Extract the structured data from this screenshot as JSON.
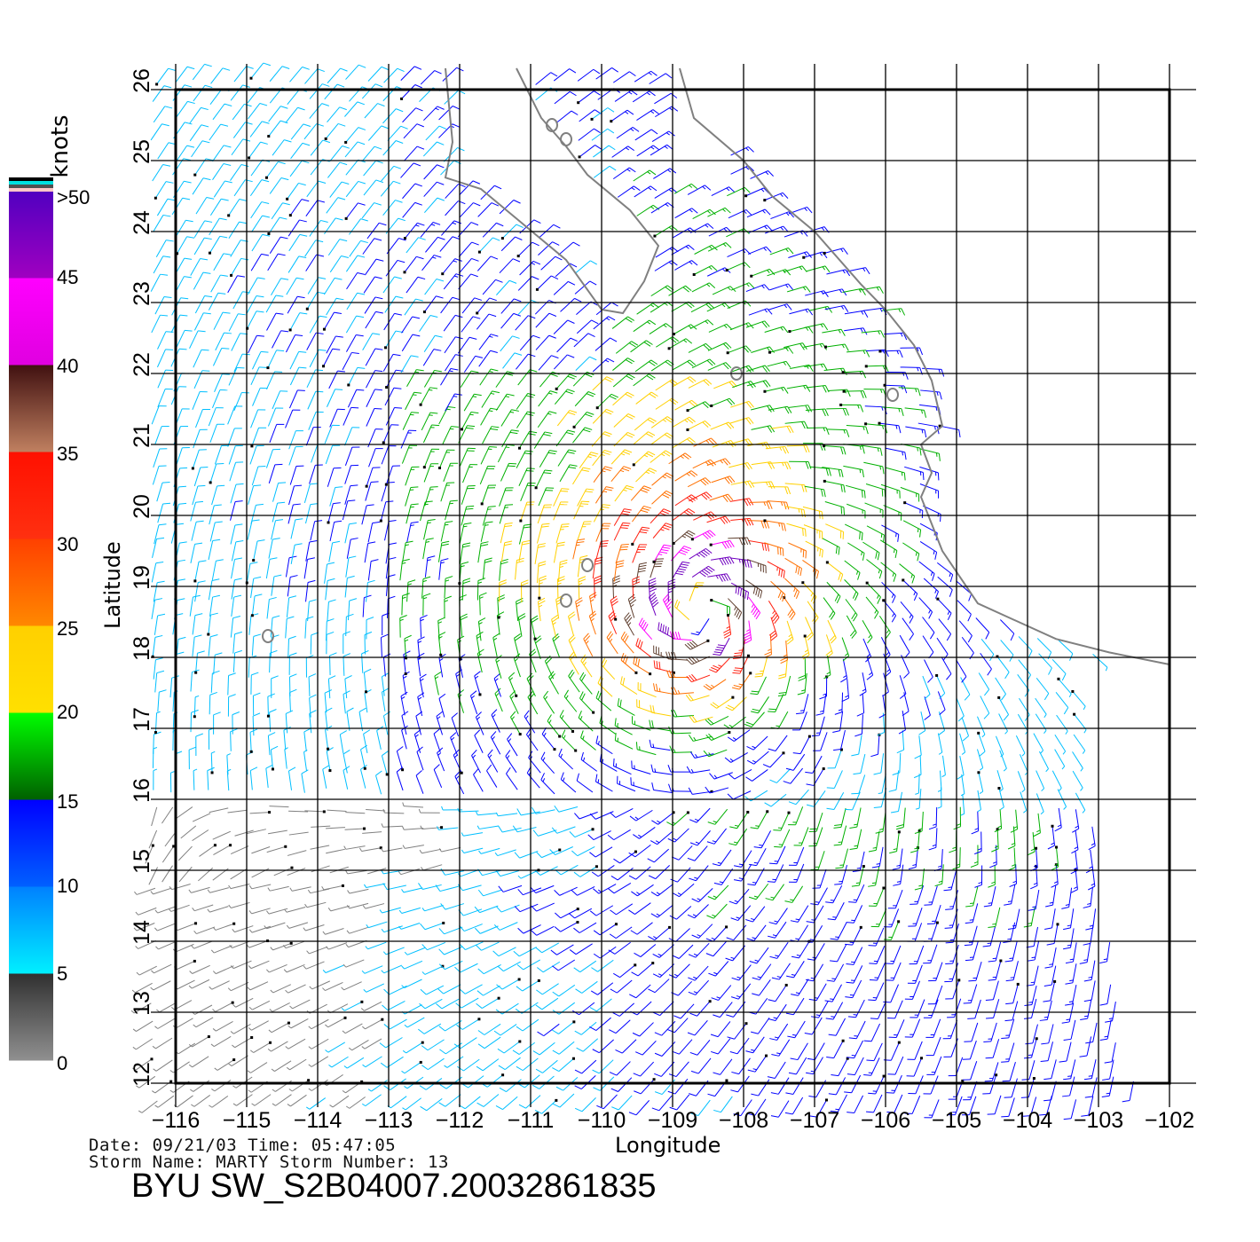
{
  "map": {
    "x_axis_label": "Longitude",
    "y_axis_label": "Latitude",
    "lon_ticks": [
      -116,
      -115,
      -114,
      -113,
      -112,
      -111,
      -110,
      -109,
      -108,
      -107,
      -106,
      -105,
      -104,
      -103,
      -102
    ],
    "lon_tick_labels": [
      "−116",
      "−115",
      "−114",
      "−113",
      "−112",
      "−111",
      "−110",
      "−109",
      "−108",
      "−107",
      "−106",
      "−105",
      "−104",
      "−103",
      "−102"
    ],
    "lat_ticks": [
      12,
      13,
      14,
      15,
      16,
      17,
      18,
      19,
      20,
      21,
      22,
      23,
      24,
      25,
      26
    ],
    "lat_tick_labels": [
      "12",
      "13",
      "14",
      "15",
      "16",
      "17",
      "18",
      "19",
      "20",
      "21",
      "22",
      "23",
      "24",
      "25",
      "26"
    ],
    "lon_range": [
      -116,
      -102
    ],
    "lat_range": [
      12,
      26
    ],
    "grid": true,
    "coastline_color": "#808080",
    "layer": "wind barbs (knots)"
  },
  "legend": {
    "title": "knots",
    "labels": [
      ">50",
      "45",
      "40",
      "35",
      "30",
      "25",
      "20",
      "15",
      "10",
      "5",
      "0"
    ],
    "bins": [
      {
        "range": "0-5",
        "color": "#808080"
      },
      {
        "range": "5-10",
        "color": "#00bfff"
      },
      {
        "range": "10-15",
        "color": "#0000ff"
      },
      {
        "range": "15-20",
        "color": "#00b000"
      },
      {
        "range": "20-25",
        "color": "#ffd000"
      },
      {
        "range": "25-30",
        "color": "#ff7000"
      },
      {
        "range": "30-35",
        "color": "#ff2010"
      },
      {
        "range": "35-40",
        "color": "#604030"
      },
      {
        "range": "40-45",
        "color": "#ff00ff"
      },
      {
        "range": "45-50",
        "color": "#7000c0"
      }
    ]
  },
  "info": {
    "date_line": "Date: 09/21/03   Time: 05:47:05",
    "storm_line": "Storm  Name: MARTY   Storm  Number: 13",
    "file_name": "BYU  SW_S2B04007.20032861835"
  }
}
